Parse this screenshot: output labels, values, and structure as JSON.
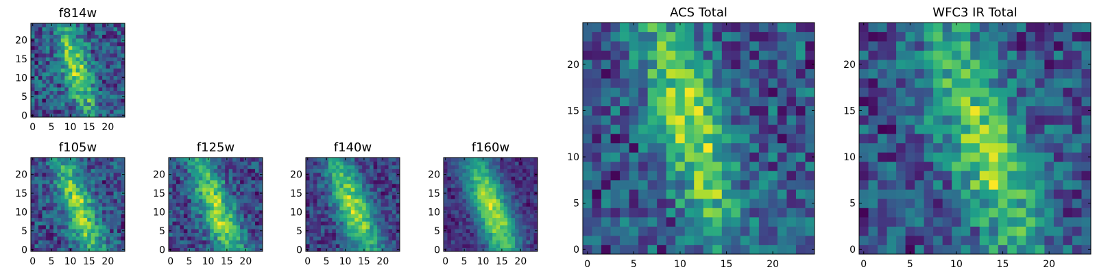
{
  "chart_data": [
    {
      "type": "heatmap",
      "title": "f814w",
      "xlim": [
        -0.5,
        24.5
      ],
      "ylim": [
        -0.5,
        24.5
      ],
      "xticks": [
        "0",
        "5",
        "10",
        "15",
        "20"
      ],
      "yticks": [
        "0",
        "5",
        "10",
        "15",
        "20"
      ],
      "colormap": "viridis",
      "pixels": [
        25,
        25
      ],
      "structure": {
        "center": [
          11.5,
          12.5
        ],
        "tilt": 0.28,
        "width": 2.8,
        "length": 10,
        "noise": 0.45,
        "seed": 11
      }
    },
    {
      "type": "heatmap",
      "title": "f105w",
      "xlim": [
        -0.5,
        24.5
      ],
      "ylim": [
        -0.5,
        24.5
      ],
      "xticks": [
        "0",
        "5",
        "10",
        "15",
        "20"
      ],
      "yticks": [
        "0",
        "5",
        "10",
        "15",
        "20"
      ],
      "colormap": "viridis",
      "pixels": [
        25,
        25
      ],
      "structure": {
        "center": [
          12.5,
          10.5
        ],
        "tilt": 0.35,
        "width": 3.0,
        "length": 11,
        "noise": 0.33,
        "seed": 21
      }
    },
    {
      "type": "heatmap",
      "title": "f125w",
      "xlim": [
        -0.5,
        24.5
      ],
      "ylim": [
        -0.5,
        24.5
      ],
      "xticks": [
        "0",
        "5",
        "10",
        "15",
        "20"
      ],
      "yticks": [
        "0",
        "5",
        "10",
        "15",
        "20"
      ],
      "colormap": "viridis",
      "pixels": [
        25,
        25
      ],
      "structure": {
        "center": [
          12.5,
          10.5
        ],
        "tilt": 0.35,
        "width": 3.1,
        "length": 12,
        "noise": 0.3,
        "seed": 31
      }
    },
    {
      "type": "heatmap",
      "title": "f140w",
      "xlim": [
        -0.5,
        24.5
      ],
      "ylim": [
        -0.5,
        24.5
      ],
      "xticks": [
        "0",
        "5",
        "10",
        "15",
        "20"
      ],
      "yticks": [
        "0",
        "5",
        "10",
        "15",
        "20"
      ],
      "colormap": "viridis",
      "pixels": [
        25,
        25
      ],
      "structure": {
        "center": [
          12.5,
          10.5
        ],
        "tilt": 0.35,
        "width": 3.3,
        "length": 12,
        "noise": 0.24,
        "seed": 41
      }
    },
    {
      "type": "heatmap",
      "title": "f160w",
      "xlim": [
        -0.5,
        24.5
      ],
      "ylim": [
        -0.5,
        24.5
      ],
      "xticks": [
        "0",
        "5",
        "10",
        "15",
        "20"
      ],
      "yticks": [
        "0",
        "5",
        "10",
        "15",
        "20"
      ],
      "colormap": "viridis",
      "pixels": [
        25,
        25
      ],
      "structure": {
        "center": [
          12.5,
          10.5
        ],
        "tilt": 0.35,
        "width": 3.4,
        "length": 12,
        "noise": 0.14,
        "seed": 51
      }
    },
    {
      "type": "heatmap",
      "title": "ACS Total",
      "xlim": [
        -0.5,
        24.5
      ],
      "ylim": [
        -0.5,
        24.5
      ],
      "xticks": [
        "0",
        "5",
        "10",
        "15",
        "20"
      ],
      "yticks": [
        "0",
        "5",
        "10",
        "15",
        "20"
      ],
      "colormap": "viridis",
      "pixels": [
        25,
        25
      ],
      "structure": {
        "center": [
          11.0,
          13.5
        ],
        "tilt": 0.28,
        "width": 2.6,
        "length": 9,
        "noise": 0.38,
        "seed": 61
      }
    },
    {
      "type": "heatmap",
      "title": "WFC3 IR Total",
      "xlim": [
        -0.5,
        24.5
      ],
      "ylim": [
        -0.5,
        24.5
      ],
      "xticks": [
        "0",
        "5",
        "10",
        "15",
        "20"
      ],
      "yticks": [
        "0",
        "5",
        "10",
        "15",
        "20"
      ],
      "colormap": "viridis",
      "pixels": [
        25,
        25
      ],
      "structure": {
        "center": [
          13.0,
          11.5
        ],
        "tilt": 0.33,
        "width": 3.0,
        "length": 11,
        "noise": 0.42,
        "seed": 71
      }
    }
  ]
}
